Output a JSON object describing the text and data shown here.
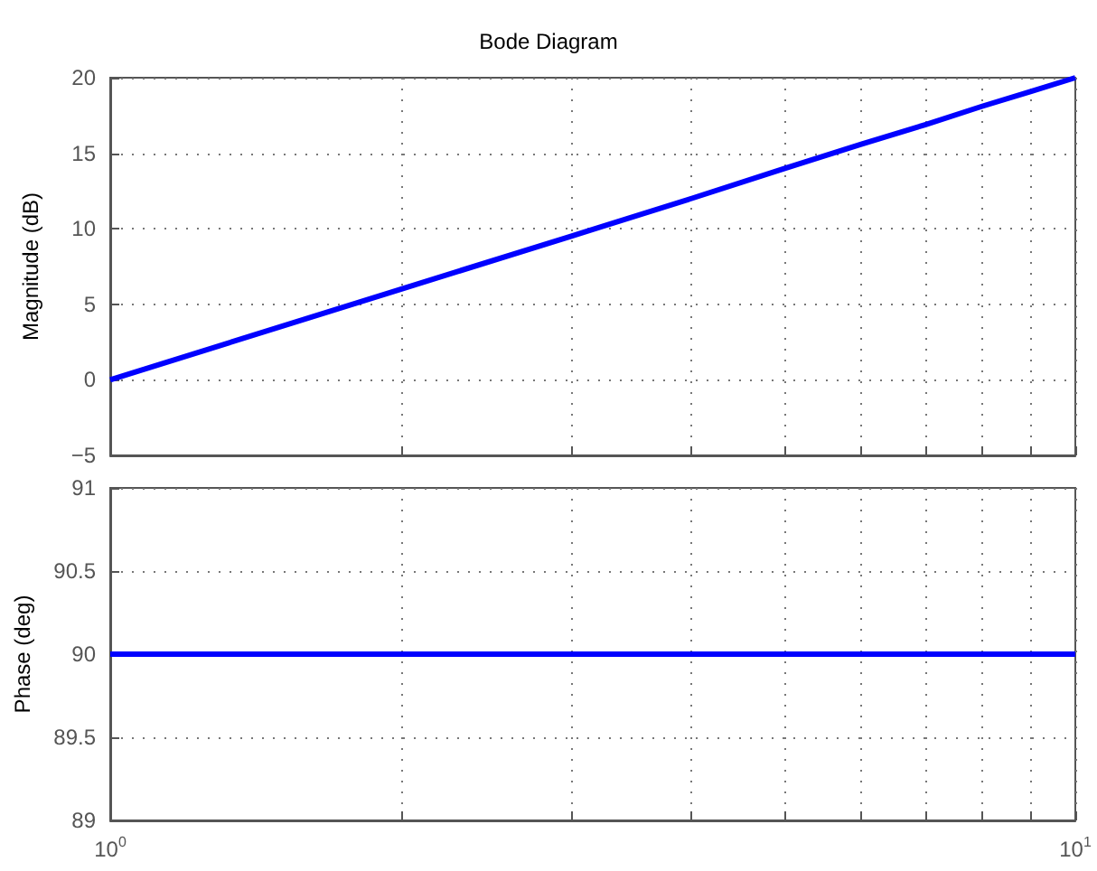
{
  "chart_data": [
    {
      "type": "line",
      "title": "Bode Diagram",
      "ylabel": "Magnitude (dB)",
      "x": [
        1,
        2,
        3,
        4,
        5,
        6,
        7,
        8,
        9,
        10
      ],
      "series": [
        {
          "color": "#0000ff",
          "values": [
            0,
            6.0,
            9.5,
            12.0,
            14.0,
            15.6,
            16.9,
            18.1,
            19.1,
            20
          ]
        }
      ],
      "xlim": [
        1,
        10
      ],
      "xticks": [
        {
          "value": 1,
          "label": null
        },
        {
          "value": 2,
          "label": null
        },
        {
          "value": 3,
          "label": null
        },
        {
          "value": 4,
          "label": null
        },
        {
          "value": 5,
          "label": null
        },
        {
          "value": 6,
          "label": null
        },
        {
          "value": 7,
          "label": null
        },
        {
          "value": 8,
          "label": null
        },
        {
          "value": 9,
          "label": null
        },
        {
          "value": 10,
          "label": null
        }
      ],
      "ylim": [
        -5,
        20
      ],
      "yticks": [
        {
          "value": -5,
          "label": "−5"
        },
        0,
        5,
        10,
        15,
        20
      ],
      "log": "x",
      "grid": true,
      "tick_labels": "y",
      "marker": "none"
    },
    {
      "type": "line",
      "ylabel": "Phase (deg)",
      "x": [
        1,
        10
      ],
      "series": [
        {
          "color": "#0000ff",
          "values": [
            90,
            90
          ]
        }
      ],
      "xlim": [
        1,
        10
      ],
      "xticks": [
        {
          "value": 1,
          "label": "10$^{0}$"
        },
        {
          "value": 2,
          "label": null
        },
        {
          "value": 3,
          "label": null
        },
        {
          "value": 4,
          "label": null
        },
        {
          "value": 5,
          "label": null
        },
        {
          "value": 6,
          "label": null
        },
        {
          "value": 7,
          "label": null
        },
        {
          "value": 8,
          "label": null
        },
        {
          "value": 9,
          "label": null
        },
        {
          "value": 10,
          "label": "10$^{1}$"
        }
      ],
      "ylim": [
        89,
        91
      ],
      "yticks": [
        89,
        89.5,
        90,
        90.5,
        91
      ],
      "log": "x",
      "grid": true,
      "marker": "none"
    }
  ]
}
